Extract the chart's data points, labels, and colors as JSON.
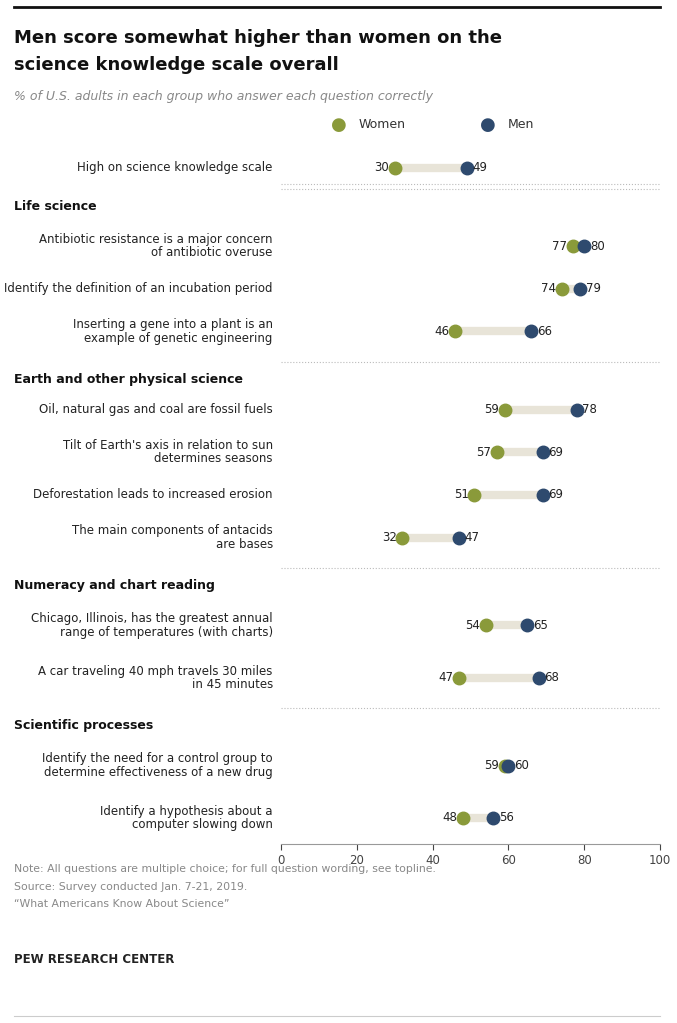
{
  "title_line1": "Men score somewhat higher than women on the",
  "title_line2": "science knowledge scale overall",
  "subtitle": "% of U.S. adults in each group who answer each question correctly",
  "women_color": "#8a9a3a",
  "men_color": "#2e4a6e",
  "connector_color": "#e8e4d8",
  "note_line1": "Note: All questions are multiple choice; for full question wording, see topline.",
  "note_line2": "Source: Survey conducted Jan. 7-21, 2019.",
  "note_line3": "“What Americans Know About Science”",
  "footer": "PEW RESEARCH CENTER",
  "xlim": [
    0,
    100
  ],
  "xticks": [
    0,
    20,
    40,
    60,
    80,
    100
  ],
  "rows": [
    {
      "label": "High on science knowledge scale",
      "women": 30,
      "men": 49,
      "type": "data",
      "is_top": true
    },
    {
      "label": "Life science",
      "type": "section_header"
    },
    {
      "label": "Antibiotic resistance is a major concern\nof antibiotic overuse",
      "women": 77,
      "men": 80,
      "type": "data"
    },
    {
      "label": "Identify the definition of an incubation period",
      "women": 74,
      "men": 79,
      "type": "data"
    },
    {
      "label": "Inserting a gene into a plant is an\nexample of genetic engineering",
      "women": 46,
      "men": 66,
      "type": "data"
    },
    {
      "label": "Earth and other physical science",
      "type": "section_header"
    },
    {
      "label": "Oil, natural gas and coal are fossil fuels",
      "women": 59,
      "men": 78,
      "type": "data"
    },
    {
      "label": "Tilt of Earth's axis in relation to sun\ndetermines seasons",
      "women": 57,
      "men": 69,
      "type": "data"
    },
    {
      "label": "Deforestation leads to increased erosion",
      "women": 51,
      "men": 69,
      "type": "data"
    },
    {
      "label": "The main components of antacids\nare bases",
      "women": 32,
      "men": 47,
      "type": "data"
    },
    {
      "label": "Numeracy and chart reading",
      "type": "section_header"
    },
    {
      "label": "Chicago, Illinois, has the greatest annual\nrange of temperatures (with charts)",
      "women": 54,
      "men": 65,
      "type": "data"
    },
    {
      "label": "A car traveling 40 mph travels 30 miles\nin 45 minutes",
      "women": 47,
      "men": 68,
      "type": "data"
    },
    {
      "label": "Scientific processes",
      "type": "section_header"
    },
    {
      "label": "Identify the need for a control group to\ndetermine effectiveness of a new drug",
      "women": 59,
      "men": 60,
      "type": "data"
    },
    {
      "label": "Identify a hypothesis about a\ncomputer slowing down",
      "women": 48,
      "men": 56,
      "type": "data"
    }
  ]
}
